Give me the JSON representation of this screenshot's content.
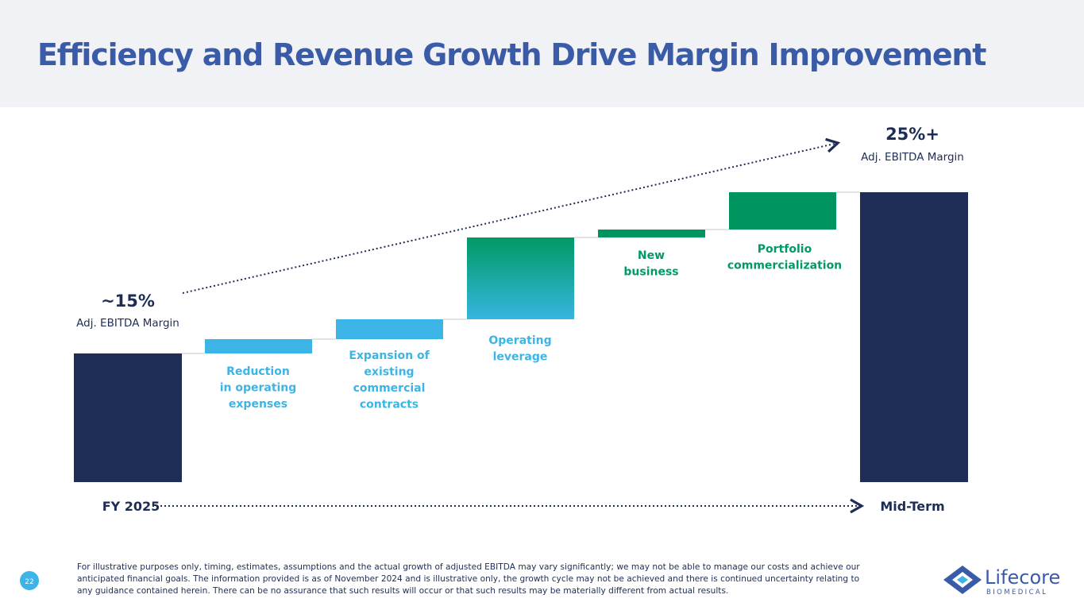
{
  "title": "Efficiency and Revenue Growth Drive Margin Improvement",
  "start": {
    "value": "~15%",
    "caption": "Adj. EBITDA Margin",
    "period": "FY 2025"
  },
  "end": {
    "value": "25%+",
    "caption": "Adj. EBITDA Margin",
    "period": "Mid-Term"
  },
  "steps": [
    {
      "lines": [
        "Reduction",
        "in operating",
        "expenses"
      ]
    },
    {
      "lines": [
        "Expansion of",
        "existing",
        "commercial",
        "contracts"
      ]
    },
    {
      "lines": [
        "Operating",
        "leverage"
      ]
    },
    {
      "lines": [
        "New",
        "business"
      ]
    },
    {
      "lines": [
        "Portfolio",
        "commercialization"
      ]
    }
  ],
  "footer": {
    "page": "22",
    "note": "For illustrative purposes only, timing, estimates, assumptions and the actual growth of adjusted EBITDA may vary significantly; we may not be able to manage our costs and achieve our anticipated financial goals. The information provided is as of November 2024 and is illustrative only, the growth cycle may not be achieved and there is continued uncertainty relating to any guidance contained herein. There can be no assurance that such results will occur or that such results may be materially different from actual results.",
    "logo": "Lifecore",
    "logo_sub": "BIOMEDICAL"
  }
}
